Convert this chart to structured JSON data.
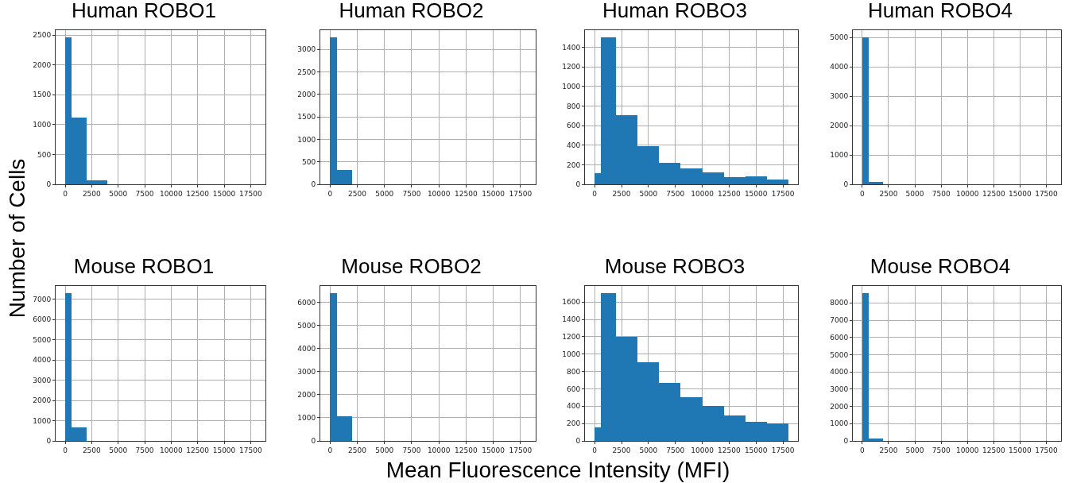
{
  "chart_data": [
    {
      "type": "histogram",
      "title": "Human ROBO1",
      "ylabel": "Number of Cells",
      "bins": [
        0,
        600,
        2000,
        4000
      ],
      "values": [
        2460,
        1120,
        70
      ],
      "color": "#1f77b4",
      "xlim": [
        -900,
        18900
      ],
      "xticks": [
        0,
        2500,
        5000,
        7500,
        10000,
        12500,
        15000,
        17500
      ],
      "ylim": [
        0,
        2580
      ],
      "yticks": [
        0,
        500,
        1000,
        1500,
        2000,
        2500
      ],
      "grid": true
    },
    {
      "type": "histogram",
      "title": "Human ROBO2",
      "bins": [
        0,
        600,
        2000
      ],
      "values": [
        3270,
        310
      ],
      "color": "#1f77b4",
      "xlim": [
        -900,
        18900
      ],
      "xticks": [
        0,
        2500,
        5000,
        7500,
        10000,
        12500,
        15000,
        17500
      ],
      "ylim": [
        0,
        3430
      ],
      "yticks": [
        0,
        500,
        1000,
        1500,
        2000,
        2500,
        3000
      ],
      "grid": true
    },
    {
      "type": "histogram",
      "title": "Human ROBO3",
      "bins": [
        0,
        600,
        2000,
        4000,
        6000,
        8000,
        10000,
        12000,
        14000,
        16000,
        18000
      ],
      "values": [
        110,
        1500,
        710,
        390,
        220,
        160,
        120,
        70,
        80,
        50
      ],
      "color": "#1f77b4",
      "xlim": [
        -900,
        18900
      ],
      "xticks": [
        0,
        2500,
        5000,
        7500,
        10000,
        12500,
        15000,
        17500
      ],
      "ylim": [
        0,
        1575
      ],
      "yticks": [
        0,
        200,
        400,
        600,
        800,
        1000,
        1200,
        1400
      ],
      "grid": true
    },
    {
      "type": "histogram",
      "title": "Human ROBO4",
      "bins": [
        0,
        600,
        2000
      ],
      "values": [
        5000,
        80
      ],
      "color": "#1f77b4",
      "xlim": [
        -900,
        18900
      ],
      "xticks": [
        0,
        2500,
        5000,
        7500,
        10000,
        12500,
        15000,
        17500
      ],
      "ylim": [
        0,
        5250
      ],
      "yticks": [
        0,
        1000,
        2000,
        3000,
        4000,
        5000
      ],
      "grid": true
    },
    {
      "type": "histogram",
      "title": "Mouse ROBO1",
      "bins": [
        0,
        600,
        2000
      ],
      "values": [
        7300,
        680
      ],
      "color": "#1f77b4",
      "xlim": [
        -900,
        18900
      ],
      "xticks": [
        0,
        2500,
        5000,
        7500,
        10000,
        12500,
        15000,
        17500
      ],
      "ylim": [
        0,
        7660
      ],
      "yticks": [
        0,
        1000,
        2000,
        3000,
        4000,
        5000,
        6000,
        7000
      ],
      "grid": true
    },
    {
      "type": "histogram",
      "title": "Mouse ROBO2",
      "xlabel": "Mean Fluorescence Intensity (MFI)",
      "bins": [
        0,
        600,
        2000
      ],
      "values": [
        6380,
        1080
      ],
      "color": "#1f77b4",
      "xlim": [
        -900,
        18900
      ],
      "xticks": [
        0,
        2500,
        5000,
        7500,
        10000,
        12500,
        15000,
        17500
      ],
      "ylim": [
        0,
        6700
      ],
      "yticks": [
        0,
        1000,
        2000,
        3000,
        4000,
        5000,
        6000
      ],
      "grid": true
    },
    {
      "type": "histogram",
      "title": "Mouse ROBO3",
      "bins": [
        0,
        600,
        2000,
        4000,
        6000,
        8000,
        10000,
        12000,
        14000,
        16000,
        18000
      ],
      "values": [
        160,
        1700,
        1200,
        910,
        670,
        500,
        400,
        290,
        220,
        200
      ],
      "color": "#1f77b4",
      "xlim": [
        -900,
        18900
      ],
      "xticks": [
        0,
        2500,
        5000,
        7500,
        10000,
        12500,
        15000,
        17500
      ],
      "ylim": [
        0,
        1785
      ],
      "yticks": [
        0,
        200,
        400,
        600,
        800,
        1000,
        1200,
        1400,
        1600
      ],
      "grid": true
    },
    {
      "type": "histogram",
      "title": "Mouse ROBO4",
      "bins": [
        0,
        600,
        2000
      ],
      "values": [
        8550,
        130
      ],
      "color": "#1f77b4",
      "xlim": [
        -900,
        18900
      ],
      "xticks": [
        0,
        2500,
        5000,
        7500,
        10000,
        12500,
        15000,
        17500
      ],
      "ylim": [
        0,
        8980
      ],
      "yticks": [
        0,
        1000,
        2000,
        3000,
        4000,
        5000,
        6000,
        7000,
        8000
      ],
      "grid": true
    }
  ]
}
